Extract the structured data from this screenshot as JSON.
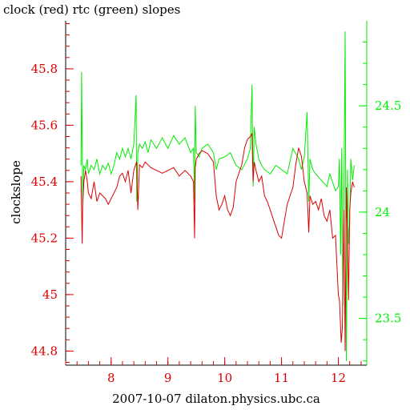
{
  "chart_data": {
    "type": "line",
    "title": "clock (red) rtc (green) slopes",
    "xlabel": "2007-10-07 dilaton.physics.ubc.ca",
    "ylabel": "clockslope",
    "xlim": [
      7.2,
      12.5
    ],
    "ylim_left": [
      44.75,
      45.97
    ],
    "ylim_right": [
      23.28,
      24.9
    ],
    "x_ticks": [
      "8",
      "9",
      "10",
      "11",
      "12"
    ],
    "y_ticks_left": [
      "44.8",
      "45",
      "45.2",
      "45.4",
      "45.6",
      "45.8"
    ],
    "y_ticks_right": [
      "23.5",
      "24",
      "24.5"
    ],
    "grid": false,
    "colors": {
      "clock": "#dd0000",
      "rtc": "#00ee00",
      "axes": "#000000"
    },
    "series": [
      {
        "name": "clock",
        "axis": "left",
        "x": [
          7.47,
          7.49,
          7.5,
          7.52,
          7.55,
          7.58,
          7.6,
          7.65,
          7.7,
          7.75,
          7.8,
          7.85,
          7.9,
          7.95,
          8.0,
          8.05,
          8.1,
          8.15,
          8.2,
          8.25,
          8.3,
          8.35,
          8.4,
          8.43,
          8.45,
          8.47,
          8.5,
          8.55,
          8.6,
          8.65,
          8.7,
          8.8,
          8.9,
          9.0,
          9.1,
          9.2,
          9.3,
          9.4,
          9.45,
          9.47,
          9.48,
          9.5,
          9.55,
          9.6,
          9.7,
          9.8,
          9.85,
          9.9,
          9.95,
          10.0,
          10.05,
          10.1,
          10.15,
          10.2,
          10.3,
          10.35,
          10.4,
          10.45,
          10.48,
          10.5,
          10.52,
          10.55,
          10.6,
          10.65,
          10.7,
          10.75,
          10.8,
          10.85,
          10.9,
          10.95,
          11.0,
          11.05,
          11.1,
          11.15,
          11.2,
          11.25,
          11.3,
          11.35,
          11.4,
          11.45,
          11.48,
          11.5,
          11.55,
          11.6,
          11.65,
          11.7,
          11.75,
          11.8,
          11.85,
          11.9,
          11.95,
          12.0,
          12.02,
          12.05,
          12.07,
          12.1,
          12.12,
          12.14,
          12.16,
          12.18,
          12.2,
          12.22,
          12.25,
          12.28
        ],
        "y": [
          45.42,
          45.18,
          45.32,
          45.4,
          45.44,
          45.4,
          45.36,
          45.34,
          45.4,
          45.33,
          45.36,
          45.35,
          45.34,
          45.32,
          45.34,
          45.36,
          45.38,
          45.42,
          45.43,
          45.4,
          45.44,
          45.36,
          45.44,
          45.46,
          45.47,
          45.3,
          45.46,
          45.45,
          45.47,
          45.46,
          45.45,
          45.44,
          45.43,
          45.44,
          45.45,
          45.42,
          45.44,
          45.42,
          45.4,
          45.2,
          45.45,
          45.48,
          45.5,
          45.51,
          45.5,
          45.47,
          45.35,
          45.3,
          45.32,
          45.35,
          45.3,
          45.28,
          45.31,
          45.4,
          45.46,
          45.52,
          45.55,
          45.56,
          45.57,
          45.4,
          45.47,
          45.44,
          45.4,
          45.42,
          45.35,
          45.33,
          45.3,
          45.27,
          45.24,
          45.21,
          45.2,
          45.26,
          45.32,
          45.35,
          45.38,
          45.46,
          45.52,
          45.49,
          45.4,
          45.36,
          45.22,
          45.35,
          45.32,
          45.33,
          45.3,
          45.34,
          45.28,
          45.26,
          45.3,
          45.2,
          45.21,
          45.0,
          44.98,
          44.83,
          44.88,
          45.3,
          44.8,
          45.38,
          45.2,
          44.98,
          45.3,
          45.36,
          45.4,
          45.38
        ]
      },
      {
        "name": "rtc",
        "axis": "right",
        "x": [
          7.47,
          7.48,
          7.5,
          7.52,
          7.55,
          7.58,
          7.6,
          7.65,
          7.7,
          7.75,
          7.8,
          7.85,
          7.9,
          7.95,
          8.0,
          8.05,
          8.1,
          8.15,
          8.2,
          8.25,
          8.3,
          8.35,
          8.4,
          8.44,
          8.45,
          8.47,
          8.5,
          8.55,
          8.6,
          8.65,
          8.7,
          8.8,
          8.9,
          9.0,
          9.1,
          9.2,
          9.3,
          9.4,
          9.45,
          9.47,
          9.48,
          9.5,
          9.55,
          9.6,
          9.7,
          9.8,
          9.85,
          9.9,
          10.0,
          10.1,
          10.2,
          10.3,
          10.4,
          10.45,
          10.48,
          10.5,
          10.52,
          10.55,
          10.6,
          10.65,
          10.7,
          10.8,
          10.9,
          11.0,
          11.1,
          11.2,
          11.3,
          11.35,
          11.4,
          11.45,
          11.48,
          11.5,
          11.55,
          11.6,
          11.7,
          11.8,
          11.85,
          11.9,
          11.95,
          12.0,
          12.02,
          12.04,
          12.06,
          12.08,
          12.1,
          12.12,
          12.14,
          12.16,
          12.18,
          12.2,
          12.22,
          12.25,
          12.28
        ],
        "y": [
          24.22,
          24.66,
          24.05,
          24.22,
          24.2,
          24.25,
          24.18,
          24.22,
          24.2,
          24.25,
          24.18,
          24.22,
          24.2,
          24.23,
          24.18,
          24.22,
          24.28,
          24.25,
          24.3,
          24.26,
          24.3,
          24.25,
          24.32,
          24.55,
          24.05,
          24.28,
          24.32,
          24.3,
          24.33,
          24.28,
          24.34,
          24.3,
          24.35,
          24.3,
          24.36,
          24.32,
          24.35,
          24.28,
          24.3,
          24.05,
          24.5,
          24.28,
          24.26,
          24.3,
          24.32,
          24.28,
          24.2,
          24.25,
          24.26,
          24.28,
          24.22,
          24.2,
          24.25,
          24.3,
          24.6,
          24.12,
          24.4,
          24.32,
          24.25,
          24.22,
          24.2,
          24.18,
          24.22,
          24.2,
          24.18,
          24.3,
          24.25,
          24.2,
          24.26,
          24.47,
          24.05,
          24.25,
          24.2,
          24.18,
          24.15,
          24.12,
          24.18,
          24.14,
          24.1,
          24.12,
          24.25,
          23.8,
          24.3,
          23.56,
          24.1,
          24.85,
          23.3,
          24.2,
          23.85,
          23.95,
          24.25,
          24.15,
          24.22
        ]
      }
    ]
  }
}
